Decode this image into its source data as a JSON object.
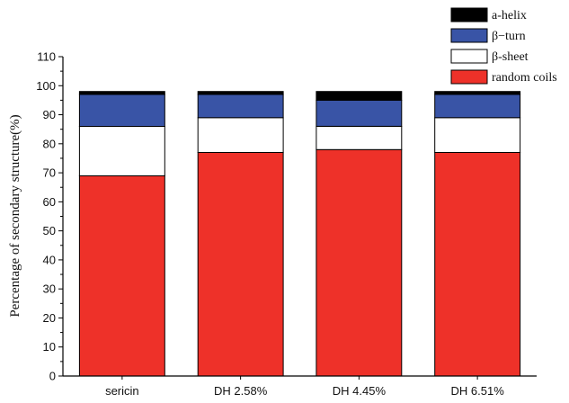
{
  "chart_data": {
    "type": "bar",
    "stacked": true,
    "title": "",
    "xlabel": "",
    "ylabel": "Percentage of secondary structure(%)",
    "ylim": [
      0,
      110
    ],
    "yticks": [
      0,
      10,
      20,
      30,
      40,
      50,
      60,
      70,
      80,
      90,
      100,
      110
    ],
    "categories": [
      "sericin",
      "DH 2.58%",
      "DH 4.45%",
      "DH 6.51%"
    ],
    "series": [
      {
        "name": "random coils",
        "color": "#ee3129",
        "values": [
          69,
          77,
          78,
          77
        ]
      },
      {
        "name": "β-sheet",
        "color": "#ffffff",
        "values": [
          17,
          12,
          8,
          12
        ]
      },
      {
        "name": "β−turn",
        "color": "#3954a6",
        "values": [
          11,
          8,
          9,
          8
        ]
      },
      {
        "name": "a-helix",
        "color": "#000000",
        "values": [
          1,
          1,
          3,
          1
        ]
      }
    ],
    "legend_order": [
      "a-helix",
      "β−turn",
      "β-sheet",
      "random coils"
    ],
    "legend_position": "top-right",
    "grid": false
  }
}
